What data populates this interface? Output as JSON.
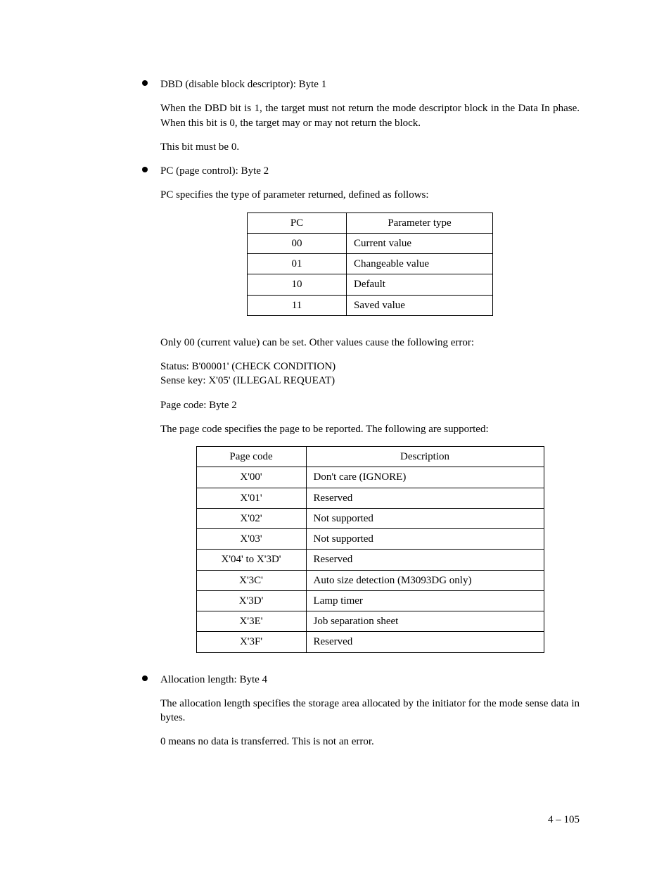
{
  "bullets": {
    "dbd": {
      "title": "DBD (disable block descriptor):  Byte 1",
      "p1": "When the DBD bit is 1, the target must not return the mode descriptor block in the Data In phase.  When this bit is 0, the target may or may not return the block.",
      "p2": "This bit must be 0."
    },
    "pc": {
      "title": "PC (page control):  Byte 2",
      "p1": "PC specifies the type of parameter returned, defined as follows:",
      "table": {
        "headers": [
          "PC",
          "Parameter type"
        ],
        "rows": [
          [
            "00",
            "Current value"
          ],
          [
            "01",
            "Changeable value"
          ],
          [
            "10",
            "Default"
          ],
          [
            "11",
            "Saved value"
          ]
        ]
      },
      "p2": "Only 00 (current value) can be set.  Other values cause the following error:",
      "status": "Status:  B'00001' (CHECK CONDITION)",
      "sense": "Sense key:  X'05' (ILLEGAL REQUEAT)",
      "p3": "Page code:  Byte 2",
      "p4": "The page code specifies the page to be reported.  The following are supported:",
      "table2": {
        "headers": [
          "Page code",
          "Description"
        ],
        "rows": [
          [
            "X'00'",
            "Don't care (IGNORE)"
          ],
          [
            "X'01'",
            "Reserved"
          ],
          [
            "X'02'",
            "Not supported"
          ],
          [
            "X'03'",
            "Not supported"
          ],
          [
            "X'04' to X'3D'",
            "Reserved"
          ],
          [
            "X'3C'",
            "Auto size detection (M3093DG only)"
          ],
          [
            "X'3D'",
            "Lamp timer"
          ],
          [
            "X'3E'",
            "Job separation sheet"
          ],
          [
            "X'3F'",
            "Reserved"
          ]
        ]
      }
    },
    "alloc": {
      "title": "Allocation length:  Byte 4",
      "p1": "The allocation length specifies the storage area allocated by the initiator for the mode sense data in bytes.",
      "p2": "0 means no data is transferred.  This is not an error."
    }
  },
  "page_number": "4 – 105"
}
